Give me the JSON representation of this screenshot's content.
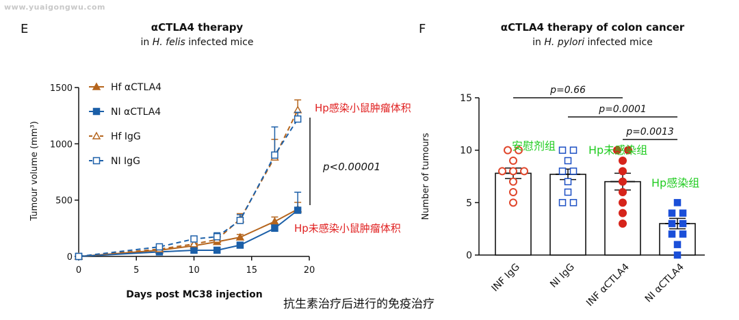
{
  "watermark": "www.yuaigongwu.com",
  "caption": "抗生素治疗后进行的免疫治疗",
  "chart_data": [
    {
      "panel": "E",
      "type": "line",
      "title": "αCTLA4 therapy",
      "subtitle": "in H. felis infected mice",
      "subtitle_italic": "H. felis",
      "xlabel": "Days post MC38 injection",
      "ylabel": "Tumour volume (mm³)",
      "xlim": [
        0,
        20
      ],
      "ylim": [
        0,
        1500
      ],
      "xticks": [
        0,
        5,
        10,
        15,
        20
      ],
      "yticks": [
        0,
        500,
        1000,
        1500
      ],
      "legend_position": "top-left",
      "series": [
        {
          "name": "Hf αCTLA4",
          "color": "#b5651d",
          "marker": "triangle-filled",
          "dashed": false,
          "x": [
            0,
            7,
            10,
            12,
            14,
            17,
            19
          ],
          "y": [
            0,
            55,
            95,
            130,
            170,
            310,
            420
          ],
          "err": [
            0,
            10,
            15,
            20,
            25,
            40,
            60
          ]
        },
        {
          "name": "NI αCTLA4",
          "color": "#1b5fa8",
          "marker": "square-filled",
          "dashed": false,
          "x": [
            0,
            7,
            10,
            12,
            14,
            17,
            19
          ],
          "y": [
            0,
            40,
            55,
            55,
            100,
            250,
            410
          ],
          "err": [
            0,
            8,
            10,
            12,
            20,
            30,
            160
          ]
        },
        {
          "name": "Hf IgG",
          "color": "#b5651d",
          "marker": "triangle-open",
          "dashed": true,
          "x": [
            0,
            7,
            10,
            12,
            14,
            17,
            19
          ],
          "y": [
            0,
            65,
            110,
            150,
            330,
            880,
            1300
          ],
          "err": [
            0,
            15,
            20,
            30,
            50,
            160,
            90
          ]
        },
        {
          "name": "NI IgG",
          "color": "#1b5fa8",
          "marker": "square-open",
          "dashed": true,
          "x": [
            0,
            7,
            10,
            12,
            14,
            17,
            19
          ],
          "y": [
            0,
            85,
            155,
            175,
            320,
            900,
            1220
          ],
          "err": [
            0,
            20,
            25,
            35,
            50,
            250,
            60
          ]
        }
      ],
      "annotations": {
        "pvalue": "p<0.00001",
        "label_upper": "Hp感染小鼠肿瘤体积",
        "label_lower": "Hp未感染小鼠肿瘤体积"
      }
    },
    {
      "panel": "F",
      "type": "bar",
      "title": "αCTLA4 therapy of colon cancer",
      "subtitle": "in H. pylori infected mice",
      "subtitle_italic": "H. pylori",
      "ylabel": "Number of tumours",
      "ylim": [
        0,
        15
      ],
      "yticks": [
        0,
        5,
        10,
        15
      ],
      "categories": [
        "INF IgG",
        "NI IgG",
        "INF αCTLA4",
        "NI αCTLA4"
      ],
      "values": [
        7.8,
        7.7,
        7.0,
        3.0
      ],
      "sem": [
        0.5,
        0.5,
        0.8,
        0.5
      ],
      "point_colors": [
        "#e0452a",
        "#1b4fc4",
        "#d6241b",
        "#1b4fd8"
      ],
      "point_styles": [
        "circle-open",
        "square-open",
        "circle-filled",
        "square-filled"
      ],
      "points": [
        [
          10,
          10,
          9,
          8,
          8,
          8,
          7,
          6,
          5
        ],
        [
          10,
          10,
          9,
          8,
          8,
          7,
          6,
          5,
          5
        ],
        [
          10,
          10,
          9,
          8,
          7,
          6,
          5,
          4,
          3
        ],
        [
          5,
          4,
          4,
          3,
          3,
          2,
          2,
          1,
          0
        ]
      ],
      "comparisons": [
        {
          "from": 0,
          "to": 2,
          "label": "p=0.66"
        },
        {
          "from": 1,
          "to": 3,
          "label": "p=0.0001"
        },
        {
          "from": 2,
          "to": 3,
          "label": "p=0.0013"
        }
      ],
      "group_labels": [
        "安慰剂组",
        "Hp未感染组",
        "Hp感染组"
      ]
    }
  ]
}
